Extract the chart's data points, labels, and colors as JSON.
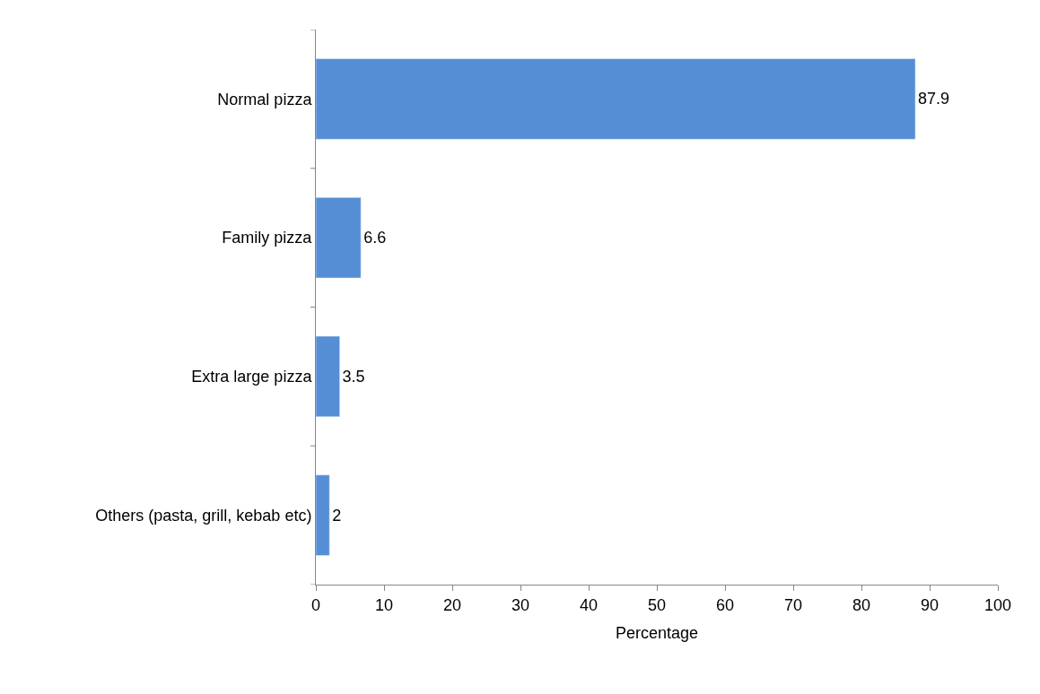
{
  "chart_data": {
    "type": "bar",
    "orientation": "horizontal",
    "xlabel": "Percentage",
    "categories": [
      "Normal pizza",
      "Family pizza",
      "Extra large pizza",
      "Others (pasta, grill, kebab etc)"
    ],
    "values": [
      87.9,
      6.6,
      3.5,
      2
    ],
    "color": "#558ed5",
    "xlim": [
      0,
      100
    ],
    "xticks": [
      0,
      10,
      20,
      30,
      40,
      50,
      60,
      70,
      80,
      90,
      100
    ],
    "data_labels": true
  }
}
